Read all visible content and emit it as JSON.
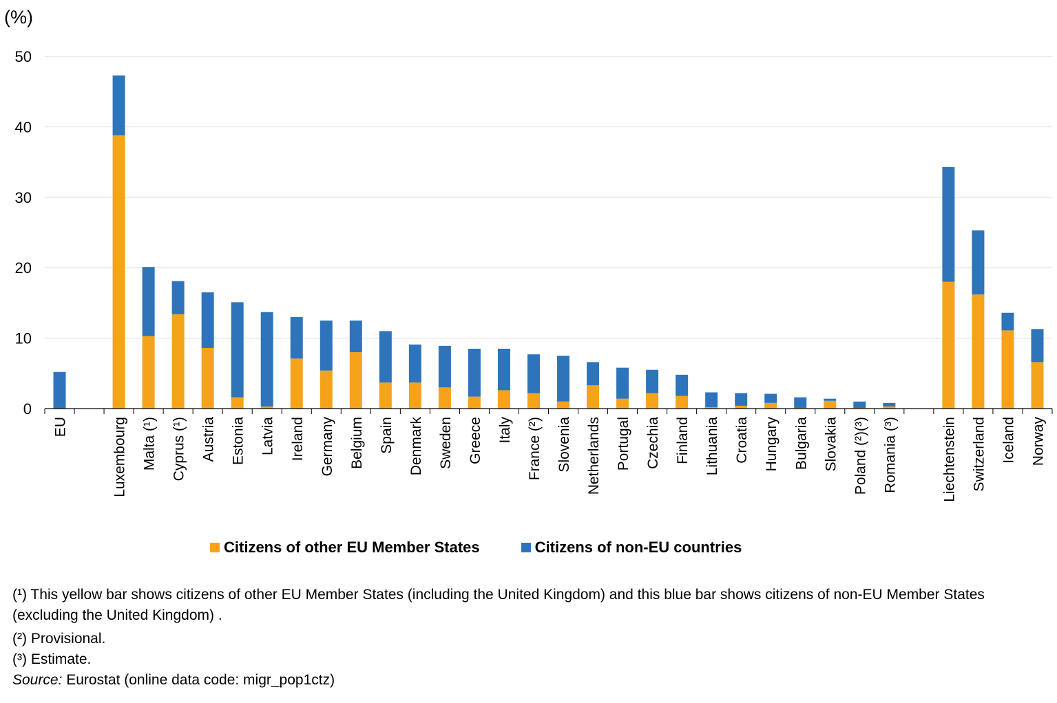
{
  "chart_data": {
    "type": "bar",
    "stacked": true,
    "unit_label": "(%)",
    "ylim": [
      0,
      50
    ],
    "yticks": [
      "0",
      "10",
      "20",
      "30",
      "40",
      "50"
    ],
    "categories": [
      "EU",
      "",
      "Luxembourg",
      "Malta (¹)",
      "Cyprus (¹)",
      "Austria",
      "Estonia",
      "Latvia",
      "Ireland",
      "Germany",
      "Belgium",
      "Spain",
      "Denmark",
      "Sweden",
      "Greece",
      "Italy",
      "France (²)",
      "Slovenia",
      "Netherlands",
      "Portugal",
      "Czechia",
      "Finland",
      "Lithuania",
      "Croatia",
      "Hungary",
      "Bulgaria",
      "Slovakia",
      "Poland (²)(³)",
      "Romania (³)",
      "",
      "Liechtenstein",
      "Switzerland",
      "Iceland",
      "Norway"
    ],
    "series": [
      {
        "name": "Citizens of other EU Member States",
        "color": "#F5A31A",
        "values": [
          0,
          null,
          38.8,
          10.3,
          13.4,
          8.6,
          1.6,
          0.3,
          7.1,
          5.4,
          8.0,
          3.7,
          3.7,
          3.0,
          1.7,
          2.6,
          2.2,
          1.0,
          3.3,
          1.4,
          2.2,
          1.8,
          0.2,
          0.4,
          0.8,
          0.1,
          1.1,
          0.1,
          0.3,
          null,
          18.0,
          16.2,
          11.1,
          6.6
        ]
      },
      {
        "name": "Citizens of non-EU countries",
        "color": "#2E74BA",
        "values": [
          5.2,
          null,
          8.5,
          9.8,
          4.7,
          7.9,
          13.5,
          13.4,
          5.9,
          7.1,
          4.5,
          7.3,
          5.4,
          5.9,
          6.8,
          5.9,
          5.5,
          6.5,
          3.3,
          4.4,
          3.3,
          3.0,
          2.1,
          1.8,
          1.3,
          1.5,
          0.3,
          0.9,
          0.5,
          null,
          16.3,
          9.1,
          2.5,
          4.7
        ]
      }
    ],
    "legend_position": "bottom",
    "grid": true
  },
  "notes": {
    "note1": "(¹) This yellow bar shows citizens of other EU Member States (including the United Kingdom) and this blue bar shows citizens of non-EU Member States (excluding the United Kingdom) .",
    "note2": "(²) Provisional.",
    "note3": "(³) Estimate.",
    "source_label": "Source:",
    "source_text": " Eurostat (online data code: migr_pop1ctz)"
  }
}
